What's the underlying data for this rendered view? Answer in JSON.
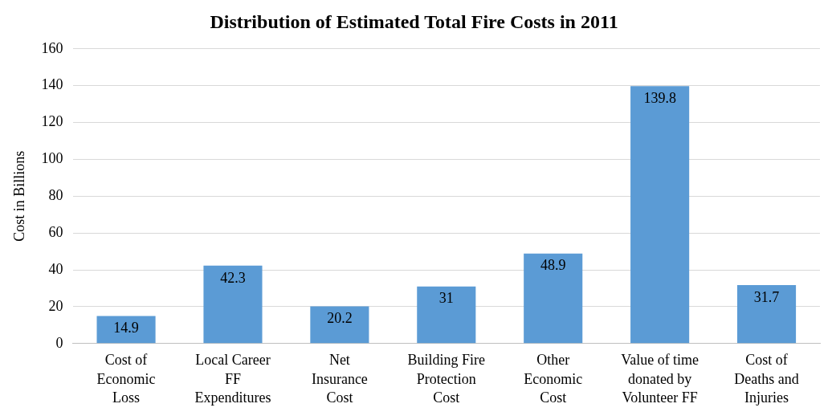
{
  "chart_data": {
    "type": "bar",
    "title": "Distribution of Estimated Total Fire Costs in 2011",
    "ylabel": "Cost in Billions",
    "categories": [
      "Cost of Economic Loss",
      "Local Career FF Expenditures",
      "Net Insurance Cost",
      "Building Fire Protection Cost",
      "Other Economic Cost",
      "Value of time donated by Volunteer FF",
      "Cost of Deaths and Injuries"
    ],
    "values": [
      14.9,
      42.3,
      20.2,
      31,
      48.9,
      139.8,
      31.7
    ],
    "color": "#5b9bd5",
    "ylim": [
      0,
      160
    ],
    "yticks": [
      0,
      20,
      40,
      60,
      80,
      100,
      120,
      140,
      160
    ],
    "grid": "y",
    "data_labels": true,
    "legend": false
  }
}
